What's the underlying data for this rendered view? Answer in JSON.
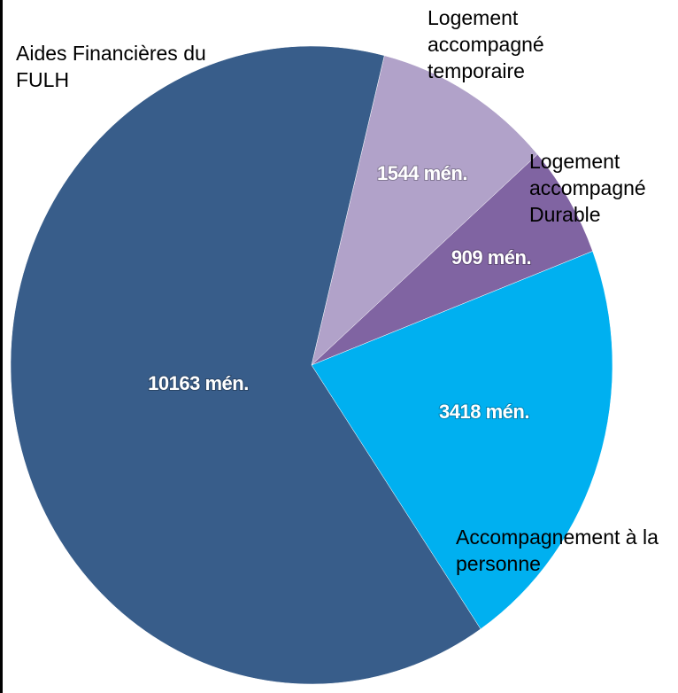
{
  "chart_data": {
    "type": "pie",
    "categories": [
      "Logement accompagné temporaire",
      "Logement accompagné Durable",
      "Accompagnement à la personne",
      "Aides Financières du FULH"
    ],
    "values": [
      1544,
      909,
      3418,
      10163
    ],
    "value_labels": [
      "1544 mén.",
      "909 mén.",
      "3418 mén.",
      "10163 mén."
    ],
    "colors": [
      "#b1a2c9",
      "#8064a2",
      "#00b0f0",
      "#385d8a"
    ]
  }
}
